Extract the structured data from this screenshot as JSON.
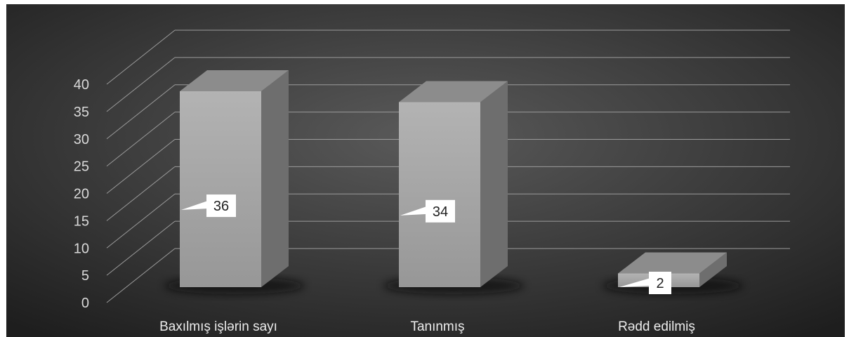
{
  "colors": {
    "background_center": "#5a5a5a",
    "background_edge": "#1e1e1e",
    "bar_front_top": "#b3b3b3",
    "bar_front_bottom": "#979797",
    "bar_side": "#6e6e6e",
    "bar_top": "#8c8c8c",
    "grid": "#9b9b9b",
    "label_box": "#ffffff"
  },
  "chart_data": {
    "type": "bar",
    "style": "3d-column",
    "categories": [
      "Baxılmış işlərin sayı",
      "Tanınmış",
      "Rədd edilmiş"
    ],
    "values": [
      36,
      34,
      2
    ],
    "data_labels": [
      "36",
      "34",
      "2"
    ],
    "y_ticks": [
      "0",
      "5",
      "10",
      "15",
      "20",
      "25",
      "30",
      "35",
      "40"
    ],
    "ylim": [
      0,
      40
    ],
    "grid": true,
    "legend": "none",
    "title": "",
    "xlabel": "",
    "ylabel": ""
  }
}
